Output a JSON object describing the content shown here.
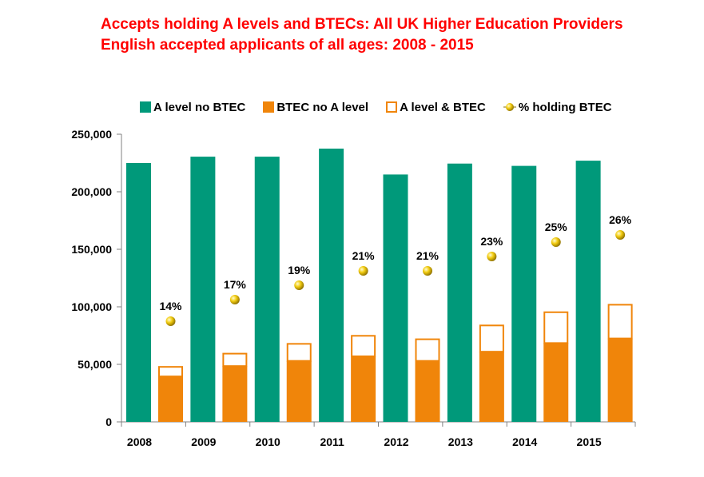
{
  "title_line1": "Accepts holding A levels and BTECs: All UK Higher Education Providers",
  "title_line2": "English accepted applicants of all ages: 2008 - 2015",
  "colors": {
    "a_level": "#00997a",
    "btec": "#f0850a",
    "combined_outline": "#f0850a",
    "marker": "#e6b800",
    "title": "#ff0000"
  },
  "chart_data": {
    "type": "bar",
    "categories": [
      "2008",
      "2009",
      "2010",
      "2011",
      "2012",
      "2013",
      "2014",
      "2015"
    ],
    "series": [
      {
        "name": "A level no BTEC",
        "values": [
          225000,
          230500,
          230500,
          237500,
          215000,
          224500,
          222500,
          227000
        ]
      },
      {
        "name": "BTEC no A level",
        "values": [
          39500,
          48500,
          53000,
          57000,
          53000,
          61000,
          68500,
          72500
        ]
      },
      {
        "name": "A level & BTEC",
        "values": [
          9000,
          11500,
          15500,
          18500,
          19500,
          23500,
          27500,
          30000
        ]
      },
      {
        "name": "% holding BTEC",
        "values": [
          14,
          17,
          19,
          21,
          21,
          23,
          25,
          26
        ]
      }
    ],
    "percent_labels": [
      "14%",
      "17%",
      "19%",
      "21%",
      "21%",
      "23%",
      "25%",
      "26%"
    ],
    "y_ticks": [
      "0",
      "50,000",
      "100,000",
      "150,000",
      "200,000",
      "250,000"
    ],
    "ylim": [
      0,
      250000
    ],
    "legend_position": "top",
    "grid": false
  }
}
